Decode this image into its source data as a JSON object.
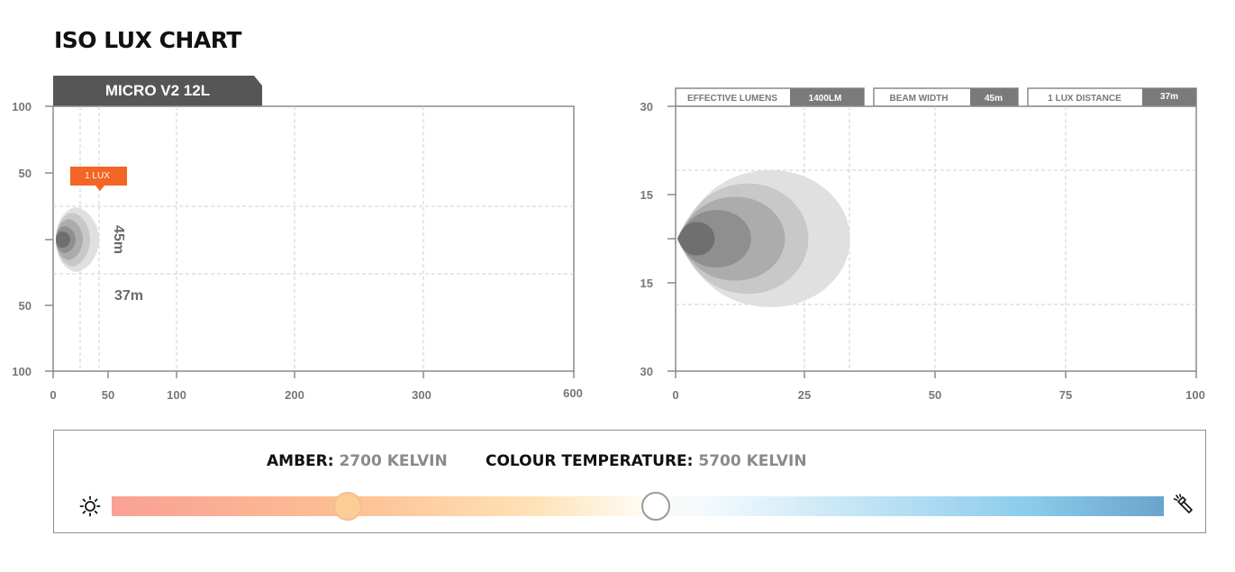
{
  "page": {
    "title": "ISO LUX CHART"
  },
  "colors": {
    "tab": "#565656",
    "lux_callout": "#f26522",
    "axis": "#8a8a8a",
    "grid": "#cfcfcf",
    "contour_outer": "#e0e0e0",
    "contour_inner": "#6f6f6f"
  },
  "chart_data": [
    {
      "type": "area",
      "name": "MICRO V2 12L",
      "title": "MICRO V2 12L",
      "x_ticks": [
        "0",
        "50",
        "100",
        "200",
        "300",
        "600"
      ],
      "y_ticks": [
        "100",
        "50",
        "",
        "50",
        "100"
      ],
      "callout": "1 LUX",
      "annotations": {
        "beam_width": "45m",
        "lux_distance": "37m"
      },
      "grid": true
    },
    {
      "type": "area",
      "x_ticks": [
        "0",
        "25",
        "50",
        "75",
        "100"
      ],
      "y_ticks": [
        "30",
        "15",
        "",
        "15",
        "30"
      ],
      "xlim": [
        0,
        100
      ],
      "ylim": [
        -30,
        30
      ],
      "grid": true,
      "stats": [
        {
          "label": "EFFECTIVE LUMENS",
          "value": "1400LM"
        },
        {
          "label": "BEAM WIDTH",
          "value": "45m"
        },
        {
          "label": "1 LUX DISTANCE",
          "value": "37m"
        }
      ],
      "contours_data": [
        {
          "max_x": 33.5,
          "half_width": 15.5,
          "color": "#e0e0e0"
        },
        {
          "max_x": 25.5,
          "half_width": 12.5,
          "color": "#c8c8c8"
        },
        {
          "max_x": 21.0,
          "half_width": 9.5,
          "color": "#acacac"
        },
        {
          "max_x": 14.5,
          "half_width": 6.5,
          "color": "#8f8f8f"
        },
        {
          "max_x": 7.5,
          "half_width": 3.8,
          "color": "#6f6f6f"
        }
      ]
    }
  ],
  "temperature": {
    "amber_label": "AMBER:",
    "amber_value": "2700 KELVIN",
    "colour_label": "COLOUR TEMPERATURE:",
    "colour_value": "5700 KELVIN",
    "left_icon": "sun-icon",
    "right_icon": "flashlight-icon"
  }
}
